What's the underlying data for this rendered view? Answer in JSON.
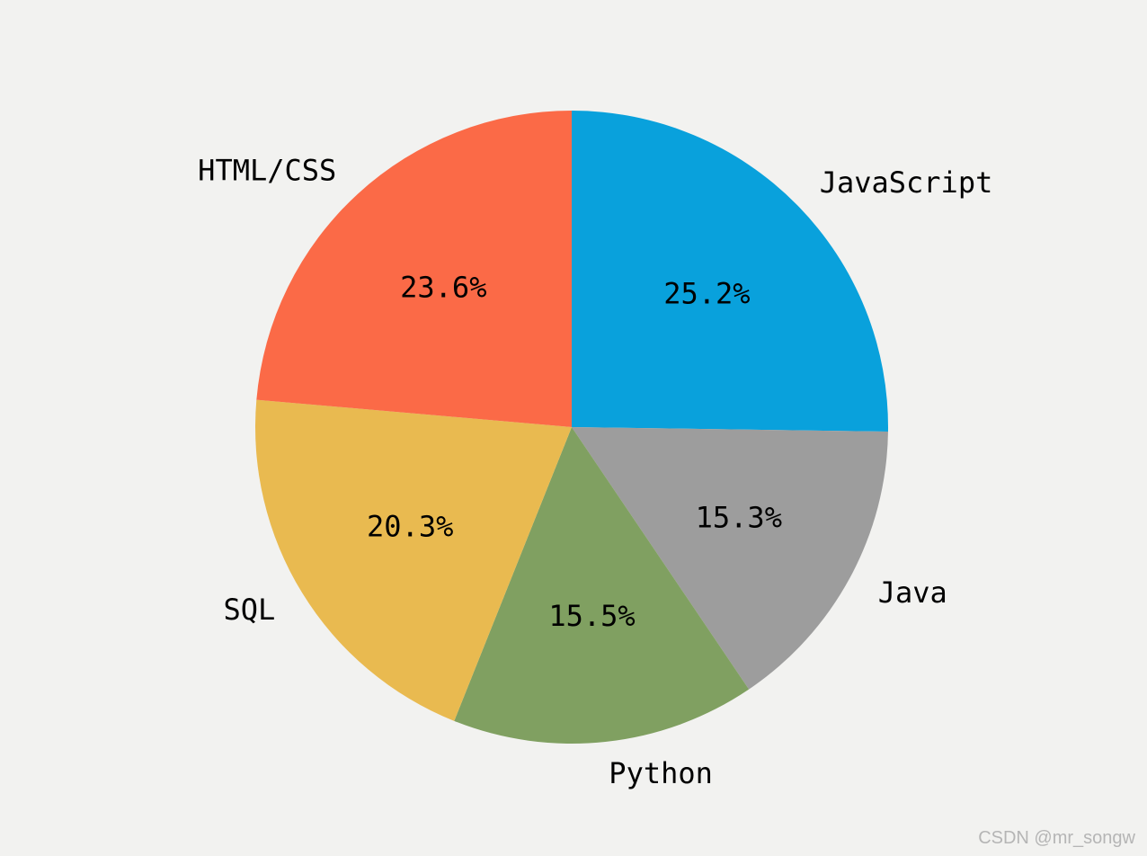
{
  "figure": {
    "background_color": "#f2f2f0",
    "text_color": "#000000"
  },
  "watermark": {
    "text": "CSDN @mr_songw",
    "color": "#b5b5b5"
  },
  "chart_data": {
    "type": "pie",
    "title": "",
    "legend": "none",
    "start_angle_deg": 90,
    "direction": "clockwise",
    "label_distance": 1.1,
    "pct_distance": 0.6,
    "slices": [
      {
        "label": "JavaScript",
        "value": 25.2,
        "pct_label": "25.2%",
        "color": "#09a1dc"
      },
      {
        "label": "Java",
        "value": 15.3,
        "pct_label": "15.3%",
        "color": "#9d9d9d"
      },
      {
        "label": "Python",
        "value": 15.5,
        "pct_label": "15.5%",
        "color": "#80a061"
      },
      {
        "label": "SQL",
        "value": 20.3,
        "pct_label": "20.3%",
        "color": "#e9ba50"
      },
      {
        "label": "HTML/CSS",
        "value": 23.6,
        "pct_label": "23.6%",
        "color": "#fb6a47"
      }
    ]
  }
}
